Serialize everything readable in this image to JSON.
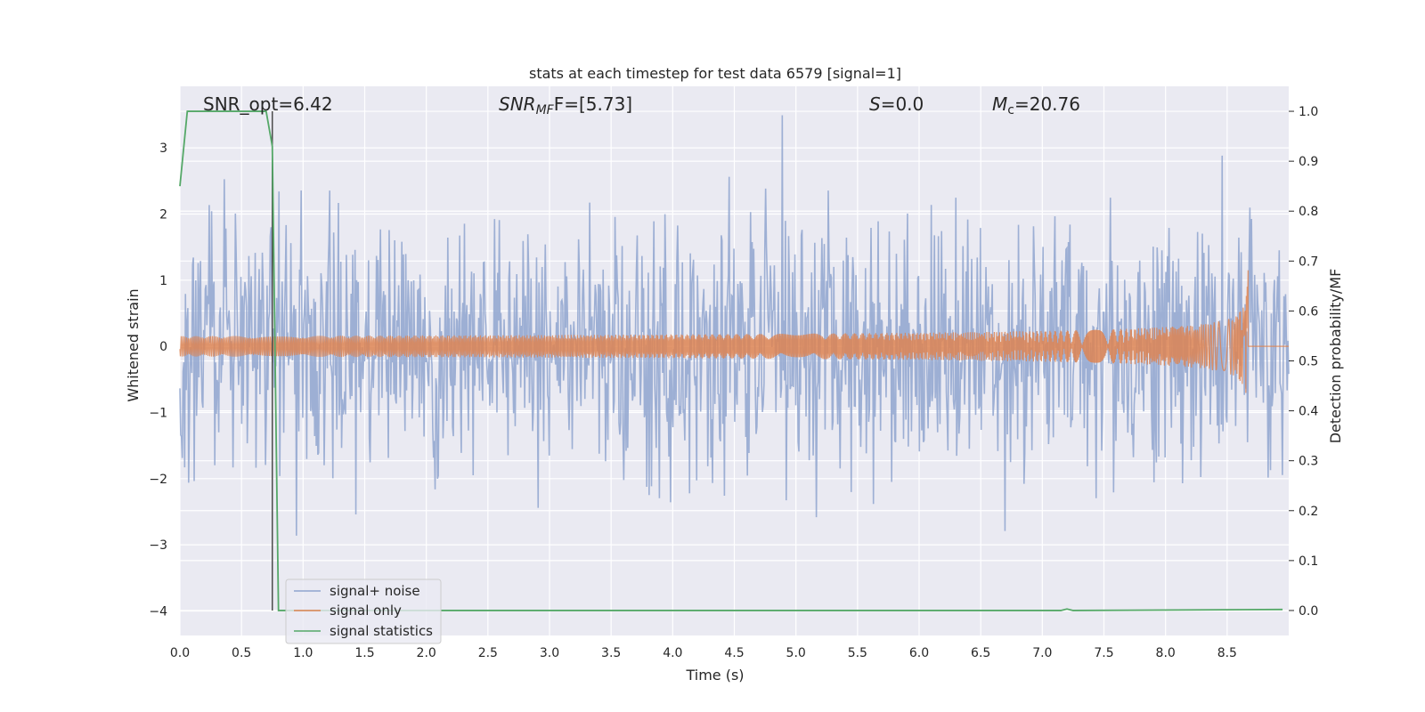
{
  "chart_data": {
    "type": "line",
    "title": "stats at each timestep for test data 6579 [signal=1]",
    "xlabel": "Time (s)",
    "ylabel_left": "Whitened strain",
    "ylabel_right": "Detection probability/MF",
    "xlim": [
      0.0,
      9.0
    ],
    "ylim_left": [
      -4.37,
      3.93
    ],
    "ylim_right": [
      -0.05,
      1.05
    ],
    "xticks": [
      "0.0",
      "0.5",
      "1.0",
      "1.5",
      "2.0",
      "2.5",
      "3.0",
      "3.5",
      "4.0",
      "4.5",
      "5.0",
      "5.5",
      "6.0",
      "6.5",
      "7.0",
      "7.5",
      "8.0",
      "8.5"
    ],
    "xtick_values": [
      0.0,
      0.5,
      1.0,
      1.5,
      2.0,
      2.5,
      3.0,
      3.5,
      4.0,
      4.5,
      5.0,
      5.5,
      6.0,
      6.5,
      7.0,
      7.5,
      8.0,
      8.5
    ],
    "yticks_left": [
      "3",
      "2",
      "1",
      "0",
      "−1",
      "−2",
      "−3",
      "−4"
    ],
    "ytick_values_left": [
      3,
      2,
      1,
      0,
      -1,
      -2,
      -3,
      -4
    ],
    "yticks_right": [
      "1.0",
      "0.9",
      "0.8",
      "0.7",
      "0.6",
      "0.5",
      "0.4",
      "0.3",
      "0.2",
      "0.1",
      "0.0"
    ],
    "ytick_values_right": [
      1.0,
      0.9,
      0.8,
      0.7,
      0.6,
      0.5,
      0.4,
      0.3,
      0.2,
      0.1,
      0.0
    ],
    "grid": true,
    "legend_position": "lower-left",
    "annotations": {
      "snr_opt": "SNR_opt=6.42",
      "snr_mf_main": "SNR",
      "snr_mf_sub": "MF",
      "snr_mf_tail": "F=[5.73]",
      "s_var": "S",
      "s_value": "=0.0",
      "mc_var": "M",
      "mc_sub": "c",
      "mc_value": "=20.76"
    },
    "marker_line_x": 0.75,
    "series": [
      {
        "name": "signal+ noise",
        "color": "#8fa5cf",
        "axis": "left",
        "description": "whitened noisy strain, dense random samples",
        "t_range": [
          0.0,
          9.0
        ],
        "samples": 1400,
        "approx_std": 0.95
      },
      {
        "name": "signal only",
        "color": "#dd8452",
        "axis": "left",
        "description": "chirp waveform growing toward merger",
        "t_range": [
          0.0,
          8.67
        ],
        "merger_time": 8.67,
        "peak_amplitude": 1.25
      },
      {
        "name": "signal statistics",
        "color": "#55a868",
        "axis": "right",
        "points": [
          [
            0.0,
            0.85
          ],
          [
            0.06,
            1.0
          ],
          [
            0.1,
            1.0
          ],
          [
            0.7,
            1.0
          ],
          [
            0.75,
            0.93
          ],
          [
            0.8,
            0.0
          ],
          [
            7.15,
            0.0
          ],
          [
            7.2,
            0.003
          ],
          [
            7.25,
            0.0
          ],
          [
            8.95,
            0.002
          ]
        ]
      }
    ]
  }
}
